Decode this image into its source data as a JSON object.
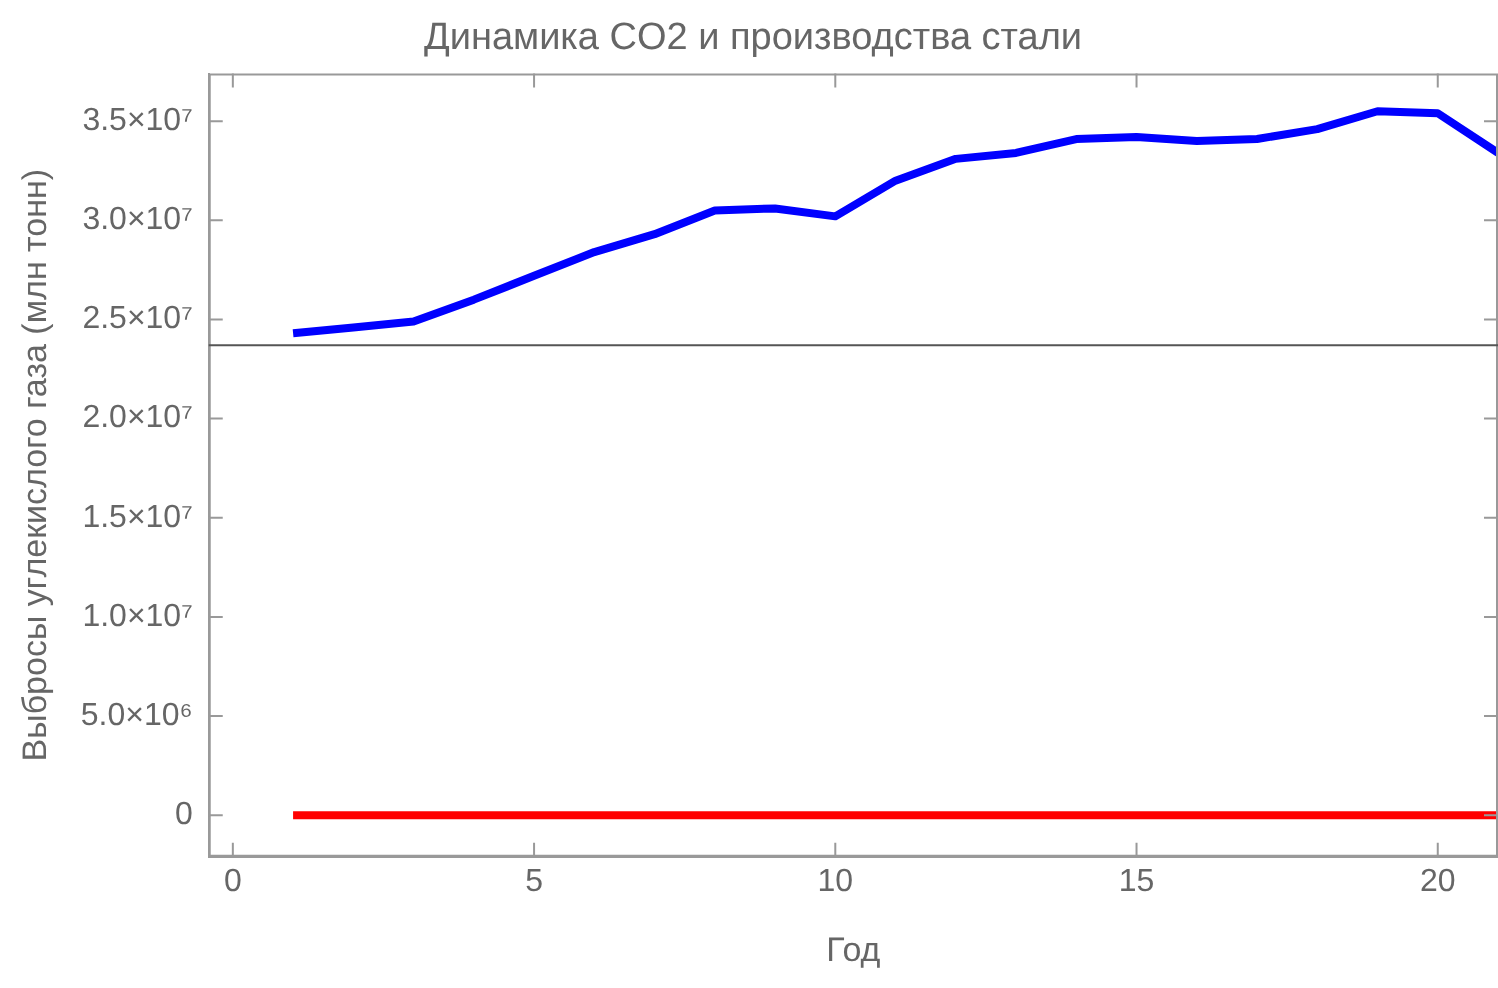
{
  "chart_data": {
    "type": "line",
    "title": "Динамика CO2 и производства стали",
    "xlabel": "Год",
    "ylabel": "Выбросы углекислого газа (млн тонн)",
    "x": [
      1,
      2,
      3,
      4,
      5,
      6,
      7,
      8,
      9,
      10,
      11,
      12,
      13,
      14,
      15,
      16,
      17,
      18,
      19,
      20,
      21
    ],
    "series": [
      {
        "color": "#0000ff",
        "values": [
          24300000,
          24600000,
          24900000,
          26000000,
          27200000,
          28400000,
          29300000,
          30500000,
          30600000,
          30200000,
          32000000,
          33100000,
          33400000,
          34100000,
          34200000,
          34000000,
          34100000,
          34600000,
          35500000,
          35400000,
          33400000
        ]
      },
      {
        "color": "#ff0000",
        "values": [
          0,
          0,
          0,
          0,
          0,
          0,
          0,
          0,
          0,
          0,
          0,
          0,
          0,
          0,
          0,
          0,
          0,
          0,
          0,
          0,
          0
        ]
      }
    ],
    "xlim": [
      -0.4,
      21
    ],
    "xticks": [
      0,
      5,
      10,
      15,
      20
    ],
    "ylim": [
      -2100000,
      37400000
    ],
    "yticks": [
      {
        "value": 0,
        "label": "0"
      },
      {
        "value": 5000000,
        "label": "5.0×10⁶"
      },
      {
        "value": 10000000,
        "label": "1.0×10⁷"
      },
      {
        "value": 15000000,
        "label": "1.5×10⁷"
      },
      {
        "value": 20000000,
        "label": "2.0×10⁷"
      },
      {
        "value": 25000000,
        "label": "2.5×10⁷"
      },
      {
        "value": 30000000,
        "label": "3.0×10⁷"
      },
      {
        "value": 35000000,
        "label": "3.5×10⁷"
      }
    ],
    "ref_lines": [
      {
        "axis": "y",
        "value": 23700000,
        "color": "#555555"
      }
    ],
    "grid": false,
    "legend": false,
    "marker": "none",
    "line_style": "solid"
  }
}
